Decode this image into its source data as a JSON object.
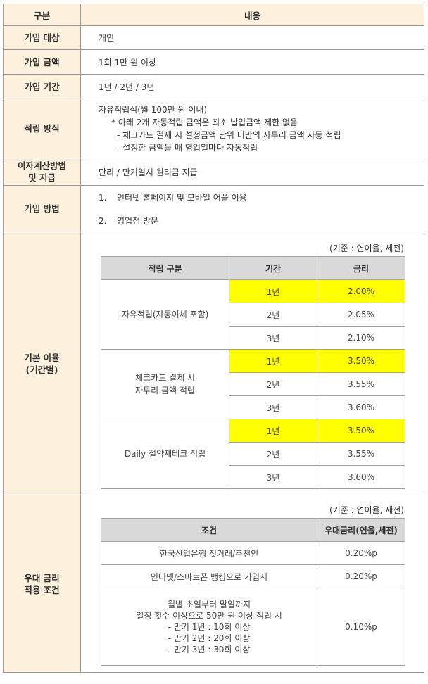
{
  "header": {
    "col1": "구분",
    "col2": "내용"
  },
  "rows": {
    "target": {
      "label": "가입 대상",
      "value": "개인"
    },
    "amount": {
      "label": "가입 금액",
      "value": "1회 1만 원 이상"
    },
    "period": {
      "label": "가입 기간",
      "value": "1년 / 2년 / 3년"
    },
    "method": {
      "label": "적립 방식",
      "line1": "자유적립식(월 100만 원 이내)",
      "line2": "* 아래 2개 자동적립 금액은 최소 납입금액 제한 없음",
      "line3": "- 체크카드 결제 시 설정금액 단위 미만의 자투리 금액 자동 적립",
      "line4": "- 설정한 금액을 매 영업일마다 자동적립"
    },
    "interest_calc": {
      "label_line1": "이자계산방법",
      "label_line2": "및 지급",
      "value": "단리 / 만기일시 원리금 지급"
    },
    "join_method": {
      "label": "가입 방법",
      "item1_num": "1.",
      "item1": "인터넷 홈페이지 및 모바일 어플 이용",
      "item2_num": "2.",
      "item2": "영업점 방문"
    },
    "base_rate": {
      "label_line1": "기본 이율",
      "label_line2": "(기간별)",
      "basis": "(기준 : 연이율, 세전)",
      "headers": {
        "type": "적립 구분",
        "period": "기간",
        "rate": "금리"
      },
      "groups": [
        {
          "name_line1": "자유적립(자동이체 포함)",
          "name_line2": "",
          "rows": [
            {
              "period": "1년",
              "rate": "2.00%"
            },
            {
              "period": "2년",
              "rate": "2.05%"
            },
            {
              "period": "3년",
              "rate": "2.10%"
            }
          ]
        },
        {
          "name_line1": "체크카드 결제 시",
          "name_line2": "자투리 금액 적립",
          "rows": [
            {
              "period": "1년",
              "rate": "3.50%"
            },
            {
              "period": "2년",
              "rate": "3.55%"
            },
            {
              "period": "3년",
              "rate": "3.60%"
            }
          ]
        },
        {
          "name_line1": "Daily 절약재테크 적립",
          "name_line2": "",
          "rows": [
            {
              "period": "1년",
              "rate": "3.50%"
            },
            {
              "period": "2년",
              "rate": "3.55%"
            },
            {
              "period": "3년",
              "rate": "3.60%"
            }
          ]
        }
      ],
      "highlight_color": "#ffff00"
    },
    "preferential": {
      "label_line1": "우대 금리",
      "label_line2": "적용 조건",
      "basis": "(기준 : 연이율, 세전)",
      "headers": {
        "condition": "조건",
        "rate": "우대금리(연율,세전)"
      },
      "rows": [
        {
          "condition": "한국산업은행 첫거래/추천인",
          "rate": "0.20%p"
        },
        {
          "condition": "인터넷/스마트폰 뱅킹으로 가입시",
          "rate": "0.20%p"
        }
      ],
      "row3": {
        "line1": "월별 초일부터 말일까지",
        "line2": "일정 횟수 이상으로 50만 원 이상 적립 시",
        "line3": "- 만기 1년 : 10회 이상",
        "line4": "- 만기 2년 : 20회 이상",
        "line5": "- 만기 3년 : 30회 이상",
        "rate": "0.10%p"
      }
    }
  },
  "colors": {
    "label_bg": "#fdf1dd",
    "sub_header_bg": "#d9d9d9",
    "highlight": "#ffff00"
  }
}
